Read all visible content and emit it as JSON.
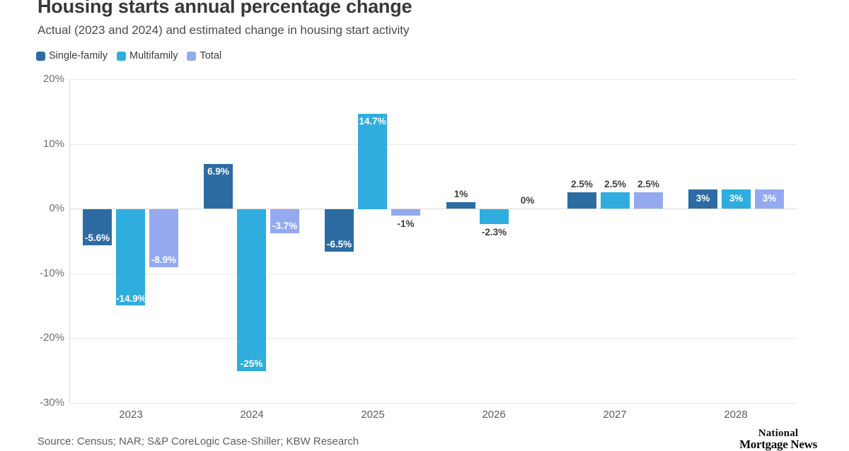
{
  "header": {
    "title": "Housing starts annual percentage change",
    "subtitle": "Actual (2023 and 2024) and estimated change in housing start activity"
  },
  "legend": {
    "items": [
      {
        "label": "Single-family",
        "color": "#2d6ca3"
      },
      {
        "label": "Multifamily",
        "color": "#2fadde"
      },
      {
        "label": "Total",
        "color": "#94a9ef"
      }
    ]
  },
  "chart_data": {
    "type": "bar",
    "title": "Housing starts annual percentage change",
    "subtitle": "Actual (2023 and 2024) and estimated change in housing start activity",
    "categories": [
      "2023",
      "2024",
      "2025",
      "2026",
      "2027",
      "2028"
    ],
    "series": [
      {
        "name": "Single-family",
        "color": "#2d6ca3",
        "values": [
          -5.6,
          6.9,
          -6.5,
          1,
          2.5,
          3
        ],
        "labels": [
          "-5.6%",
          "6.9%",
          "-6.5%",
          "1%",
          "2.5%",
          "3%"
        ]
      },
      {
        "name": "Multifamily",
        "color": "#2fadde",
        "values": [
          -14.9,
          -25,
          14.7,
          -2.3,
          2.5,
          3
        ],
        "labels": [
          "-14.9%",
          "-25%",
          "14.7%",
          "-2.3%",
          "2.5%",
          "3%"
        ]
      },
      {
        "name": "Total",
        "color": "#94a9ef",
        "values": [
          -8.9,
          -3.7,
          -1,
          0,
          2.5,
          3
        ],
        "labels": [
          "-8.9%",
          "-3.7%",
          "-1%",
          "0%",
          "2.5%",
          "3%"
        ]
      }
    ],
    "ylim": [
      -30,
      20
    ],
    "yticks": [
      20,
      10,
      0,
      -10,
      -20,
      -30
    ],
    "ytick_labels": [
      "20%",
      "10%",
      "0%",
      "-10%",
      "-20%",
      "-30%"
    ],
    "xlabel": "",
    "ylabel": "",
    "grid": "horizontal",
    "legend_position": "top-left"
  },
  "footer": {
    "source": "Source: Census; NAR; S&P CoreLogic Case-Shiller; KBW Research",
    "logo_line1": "National",
    "logo_line2": "Mortgage News"
  }
}
